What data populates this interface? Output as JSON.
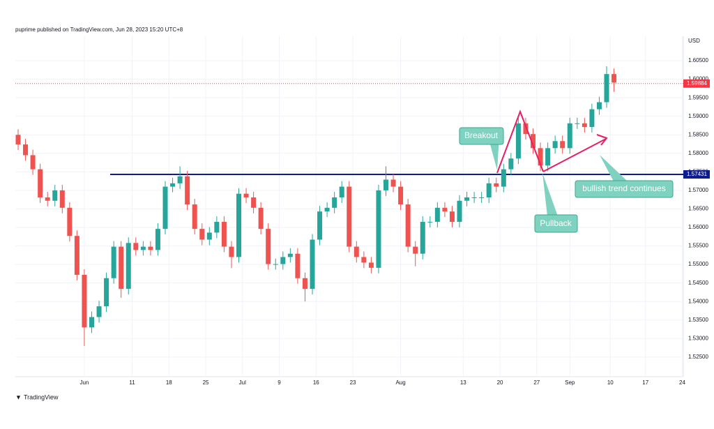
{
  "header": "puprime published on TradingView.com, Jun 28, 2023 15:20 UTC+8",
  "footer": "TradingView",
  "chart_data": {
    "type": "candlestick",
    "currency": "USD",
    "x": [
      "May 19",
      "May 22",
      "May 23",
      "May 24",
      "May 25",
      "May 26",
      "May 29",
      "May 30",
      "May 31",
      "Jun 1",
      "Jun 2",
      "Jun 5",
      "Jun 6",
      "Jun 7",
      "Jun 8",
      "Jun 9",
      "Jun 12",
      "Jun 13",
      "Jun 14",
      "Jun 15",
      "Jun 16",
      "Jun 19",
      "Jun 20",
      "Jun 21",
      "Jun 22",
      "Jun 23",
      "Jun 26",
      "Jun 27",
      "Jun 28",
      "Jun 29",
      "Jun 30",
      "Jul 3",
      "Jul 4",
      "Jul 5",
      "Jul 6",
      "Jul 7",
      "Jul 10",
      "Jul 11",
      "Jul 12",
      "Jul 13",
      "Jul 14",
      "Jul 17",
      "Jul 18",
      "Jul 19",
      "Jul 20",
      "Jul 21",
      "Jul 24",
      "Jul 25",
      "Jul 26",
      "Jul 27",
      "Jul 28",
      "Jul 31",
      "Aug 1",
      "Aug 2",
      "Aug 3",
      "Aug 4",
      "Aug 7",
      "Aug 8",
      "Aug 9",
      "Aug 10",
      "Aug 11",
      "Aug 14",
      "Aug 15",
      "Aug 16",
      "Aug 17",
      "Aug 18",
      "Aug 21",
      "Aug 22",
      "Aug 23",
      "Aug 24",
      "Aug 25",
      "Aug 28",
      "Aug 29",
      "Aug 30",
      "Aug 31",
      "Sep 1",
      "Sep 4",
      "Sep 5",
      "Sep 6",
      "Sep 7",
      "Sep 8",
      "Sep 11"
    ],
    "open": [
      1.585,
      1.5824,
      1.5795,
      1.5757,
      1.5681,
      1.5672,
      1.57,
      1.5653,
      1.5577,
      1.5472,
      1.533,
      1.5358,
      1.5387,
      1.5463,
      1.5548,
      1.5434,
      1.5558,
      1.5539,
      1.5548,
      1.5539,
      1.5596,
      1.571,
      1.5719,
      1.5738,
      1.5662,
      1.5596,
      1.5567,
      1.5586,
      1.5615,
      1.5548,
      1.552,
      1.5691,
      1.5681,
      1.5653,
      1.5596,
      1.5501,
      1.5501,
      1.552,
      1.5529,
      1.5463,
      1.5434,
      1.5567,
      1.5643,
      1.5653,
      1.5681,
      1.571,
      1.5548,
      1.552,
      1.5505,
      1.5491,
      1.57,
      1.5729,
      1.571,
      1.5662,
      1.5548,
      1.5529,
      1.5615,
      1.5615,
      1.5653,
      1.5643,
      1.5615,
      1.5672,
      1.5681,
      1.5681,
      1.5681,
      1.5719,
      1.571,
      1.5757,
      1.5786,
      1.5881,
      1.5852,
      1.5814,
      1.5767,
      1.5814,
      1.5833,
      1.5814,
      1.5881,
      1.5881,
      1.5871,
      1.5919,
      1.5938,
      1.6014
    ],
    "high": [
      1.5865,
      1.5839,
      1.581,
      1.5772,
      1.5696,
      1.5715,
      1.5715,
      1.5668,
      1.5592,
      1.5487,
      1.5373,
      1.5402,
      1.5478,
      1.5563,
      1.5563,
      1.5573,
      1.5573,
      1.5563,
      1.5563,
      1.5611,
      1.5725,
      1.5734,
      1.5765,
      1.5753,
      1.5677,
      1.5611,
      1.5601,
      1.563,
      1.563,
      1.5563,
      1.5706,
      1.5706,
      1.5696,
      1.5668,
      1.5611,
      1.5516,
      1.5535,
      1.5544,
      1.5544,
      1.5478,
      1.5582,
      1.5658,
      1.5668,
      1.5696,
      1.5725,
      1.5725,
      1.5563,
      1.5535,
      1.552,
      1.5715,
      1.5765,
      1.5744,
      1.5725,
      1.5677,
      1.5563,
      1.563,
      1.563,
      1.5668,
      1.5668,
      1.5658,
      1.5687,
      1.5696,
      1.5696,
      1.5696,
      1.5734,
      1.5734,
      1.5772,
      1.5801,
      1.5896,
      1.5896,
      1.5867,
      1.5829,
      1.5829,
      1.5848,
      1.5848,
      1.5896,
      1.5896,
      1.5896,
      1.5934,
      1.5953,
      1.6035,
      1.6029
    ],
    "low": [
      1.5809,
      1.578,
      1.5742,
      1.5666,
      1.5657,
      1.5657,
      1.5638,
      1.5562,
      1.5457,
      1.528,
      1.5315,
      1.5343,
      1.5372,
      1.5448,
      1.541,
      1.5419,
      1.5524,
      1.5524,
      1.5524,
      1.5524,
      1.5581,
      1.5695,
      1.5704,
      1.5647,
      1.5581,
      1.5552,
      1.5552,
      1.5571,
      1.5533,
      1.549,
      1.5505,
      1.5666,
      1.5638,
      1.5581,
      1.5486,
      1.5486,
      1.5486,
      1.5505,
      1.5448,
      1.54,
      1.5419,
      1.5552,
      1.5628,
      1.5638,
      1.5666,
      1.5533,
      1.5505,
      1.549,
      1.5476,
      1.5476,
      1.5685,
      1.5695,
      1.5647,
      1.5533,
      1.5495,
      1.5514,
      1.56,
      1.56,
      1.5628,
      1.56,
      1.56,
      1.5657,
      1.5666,
      1.5666,
      1.5666,
      1.5695,
      1.5695,
      1.5742,
      1.5771,
      1.5837,
      1.5799,
      1.5752,
      1.5752,
      1.5799,
      1.5799,
      1.5799,
      1.5866,
      1.5856,
      1.5856,
      1.5904,
      1.5923,
      1.5966
    ],
    "close": [
      1.5824,
      1.5795,
      1.5757,
      1.5681,
      1.5672,
      1.57,
      1.5653,
      1.5577,
      1.5472,
      1.533,
      1.5358,
      1.5387,
      1.5463,
      1.5548,
      1.5434,
      1.5558,
      1.5539,
      1.5548,
      1.5539,
      1.5596,
      1.571,
      1.5719,
      1.5738,
      1.5662,
      1.5596,
      1.5567,
      1.5586,
      1.5615,
      1.5548,
      1.552,
      1.5691,
      1.5681,
      1.5653,
      1.5596,
      1.5501,
      1.5501,
      1.552,
      1.5529,
      1.5463,
      1.5434,
      1.5567,
      1.5643,
      1.5653,
      1.5681,
      1.571,
      1.5548,
      1.552,
      1.5505,
      1.5491,
      1.57,
      1.5729,
      1.571,
      1.5662,
      1.5548,
      1.5529,
      1.5615,
      1.5615,
      1.5653,
      1.5643,
      1.5615,
      1.5672,
      1.5681,
      1.5681,
      1.5681,
      1.5719,
      1.571,
      1.5757,
      1.5786,
      1.5881,
      1.5852,
      1.5814,
      1.5767,
      1.5814,
      1.5833,
      1.5814,
      1.5881,
      1.5881,
      1.5871,
      1.5919,
      1.5938,
      1.6014,
      1.5991
    ],
    "up_color": "#26a69a",
    "down_color": "#ef5350",
    "ylim": [
      1.5197,
      1.6116
    ],
    "yticks": [
      {
        "value": 1.525,
        "label": "1.52500"
      },
      {
        "value": 1.53,
        "label": "1.53000"
      },
      {
        "value": 1.535,
        "label": "1.53500"
      },
      {
        "value": 1.54,
        "label": "1.54000"
      },
      {
        "value": 1.545,
        "label": "1.54500"
      },
      {
        "value": 1.55,
        "label": "1.55000"
      },
      {
        "value": 1.555,
        "label": "1.55500"
      },
      {
        "value": 1.56,
        "label": "1.56000"
      },
      {
        "value": 1.565,
        "label": "1.56500"
      },
      {
        "value": 1.57,
        "label": "1.57000"
      },
      {
        "value": 1.575,
        "label": "1.57500"
      },
      {
        "value": 1.58,
        "label": "1.58000"
      },
      {
        "value": 1.585,
        "label": "1.58500"
      },
      {
        "value": 1.59,
        "label": "1.59000"
      },
      {
        "value": 1.595,
        "label": "1.59500"
      },
      {
        "value": 1.6,
        "label": "1.60000"
      },
      {
        "value": 1.605,
        "label": "1.60500"
      }
    ],
    "xticks": [
      {
        "value": "Jun 1",
        "label": "Jun"
      },
      {
        "value": "Jun 11",
        "label": "11"
      },
      {
        "value": "Jun 18",
        "label": "18"
      },
      {
        "value": "Jun 25",
        "label": "25"
      },
      {
        "value": "Jul 1",
        "label": "Jul"
      },
      {
        "value": "Jul 9",
        "label": "9"
      },
      {
        "value": "Jul 16",
        "label": "16"
      },
      {
        "value": "Jul 23",
        "label": "23"
      },
      {
        "value": "Aug 1",
        "label": "Aug"
      },
      {
        "value": "Aug 13",
        "label": "13"
      },
      {
        "value": "Aug 20",
        "label": "20"
      },
      {
        "value": "Aug 27",
        "label": "27"
      },
      {
        "value": "Sep 1",
        "label": "Sep"
      },
      {
        "value": "Sep 10",
        "label": "10"
      },
      {
        "value": "Sep 17",
        "label": "17"
      },
      {
        "value": "Sep 24",
        "label": "24"
      }
    ],
    "grid": true,
    "levels": [
      {
        "value": 1.57431,
        "color": "#0d1b8e",
        "style": "solid"
      },
      {
        "value": 1.59884,
        "color": "#f23645",
        "style": "dotted"
      }
    ],
    "annotations": [
      "Breakout",
      "Pullback",
      "bullish trend continues"
    ]
  }
}
